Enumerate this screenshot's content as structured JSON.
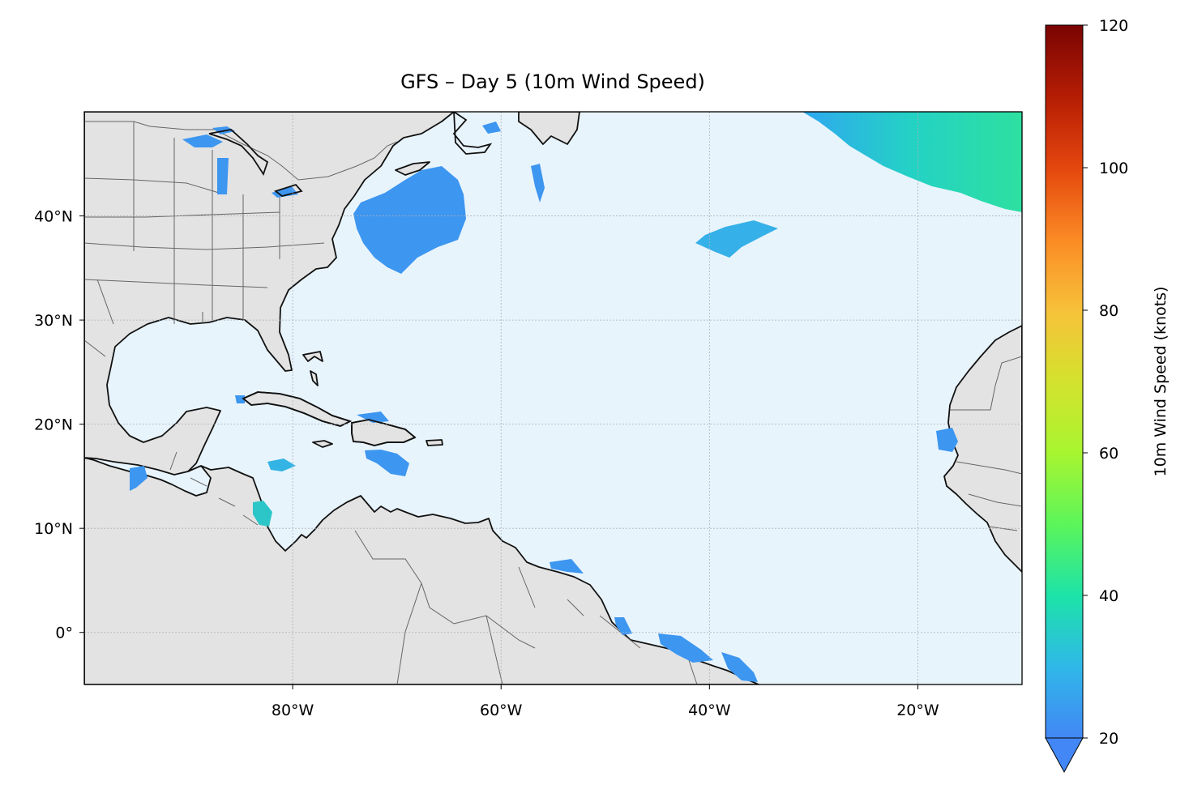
{
  "title": "GFS – Day 5 (10m Wind Speed)",
  "map": {
    "lon_range": [
      -100,
      -10
    ],
    "lat_range": [
      -5,
      50
    ],
    "x_ticks": [
      {
        "value": -80,
        "label": "80°W"
      },
      {
        "value": -60,
        "label": "60°W"
      },
      {
        "value": -40,
        "label": "40°W"
      },
      {
        "value": -20,
        "label": "20°W"
      }
    ],
    "y_ticks": [
      {
        "value": 0,
        "label": "0°"
      },
      {
        "value": 10,
        "label": "10°N"
      },
      {
        "value": 20,
        "label": "20°N"
      },
      {
        "value": 30,
        "label": "30°N"
      },
      {
        "value": 40,
        "label": "40°N"
      }
    ],
    "gridlines": "dotted",
    "colors": {
      "ocean": "#e8f4fc",
      "land": "#e3e3e3",
      "coastline": "#111111",
      "borders": "#666666",
      "grid": "#aab0b8"
    }
  },
  "colorbar": {
    "label": "10m Wind Speed (knots)",
    "min": 20,
    "max": 120,
    "extend": "min",
    "colormap": "turbo",
    "stops": [
      "#4287f5",
      "#2fb8e8",
      "#1de3a8",
      "#5cf55a",
      "#a8f530",
      "#d4e22d",
      "#f7c13a",
      "#fb8a24",
      "#e4460e",
      "#b51d04",
      "#7a0403"
    ],
    "ticks": [
      {
        "value": 20,
        "label": "20"
      },
      {
        "value": 40,
        "label": "40"
      },
      {
        "value": 60,
        "label": "60"
      },
      {
        "value": 80,
        "label": "80"
      },
      {
        "value": 100,
        "label": "100"
      },
      {
        "value": 120,
        "label": "120"
      }
    ]
  },
  "wind_areas": [
    {
      "region": "northeast-atlantic",
      "peak_knots": 32
    },
    {
      "region": "off-us-northeast-coast",
      "peak_knots": 24
    },
    {
      "region": "central-atlantic-40n",
      "peak_knots": 27
    },
    {
      "region": "gulf-of-honduras-coast",
      "peak_knots": 30
    },
    {
      "region": "caribbean-south-of-hispaniola",
      "peak_knots": 23
    },
    {
      "region": "off-west-africa-15n",
      "peak_knots": 22
    },
    {
      "region": "off-brazil-northeast-coast",
      "peak_knots": 23
    }
  ]
}
